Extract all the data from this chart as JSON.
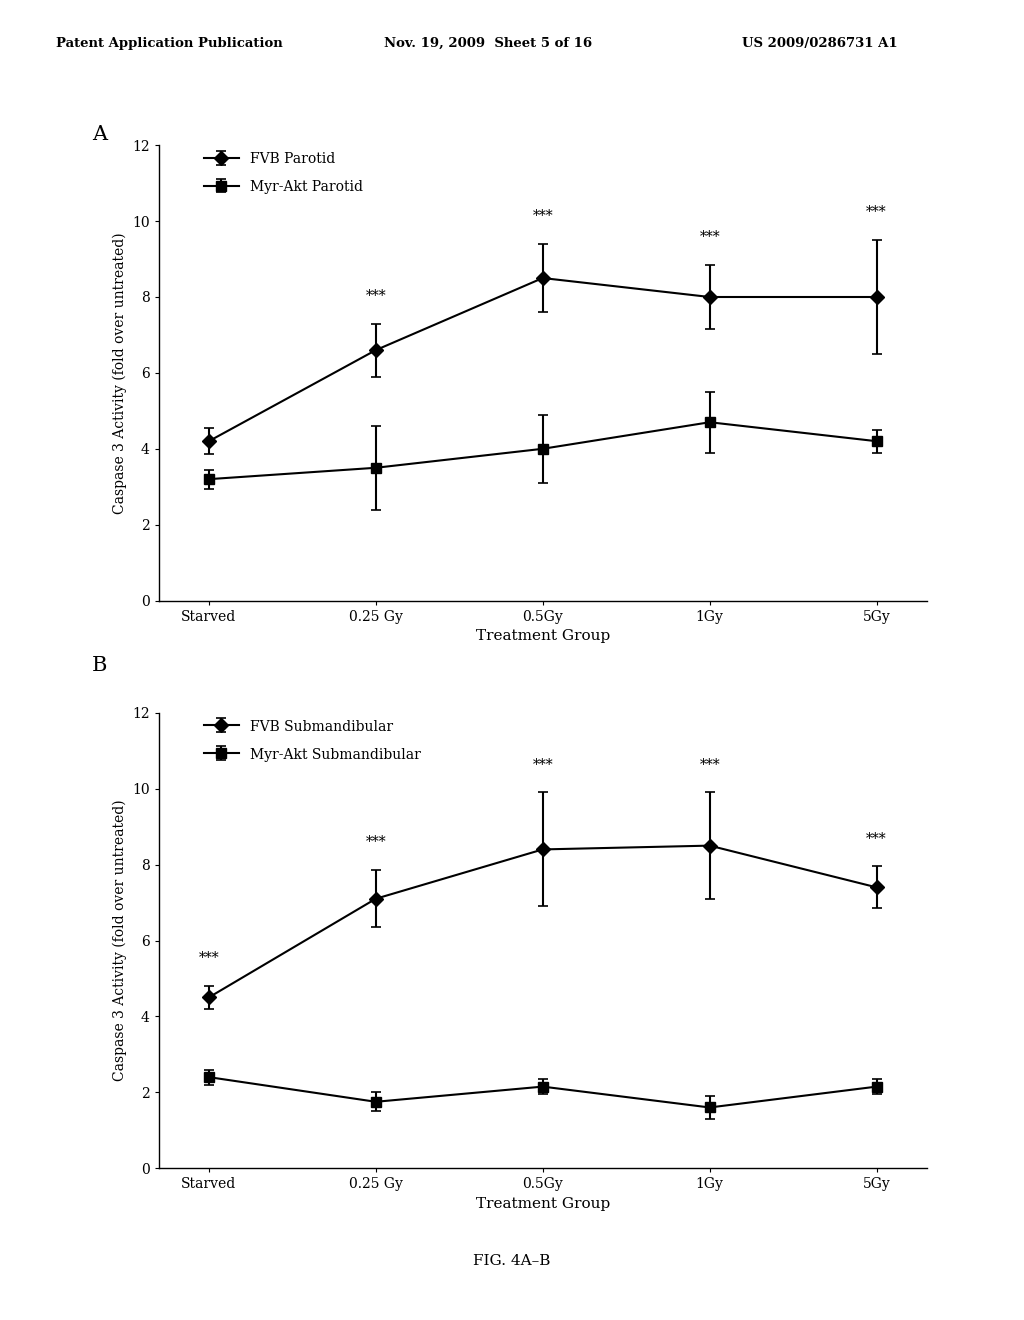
{
  "header_left": "Patent Application Publication",
  "header_mid": "Nov. 19, 2009  Sheet 5 of 16",
  "header_right": "US 2009/0286731 A1",
  "figure_label": "FIG. 4A–B",
  "panel_A": {
    "label": "A",
    "xlabel": "Treatment Group",
    "ylabel": "Caspase 3 Activity (fold over untreated)",
    "xlim": [
      -0.3,
      4.3
    ],
    "ylim": [
      0,
      12
    ],
    "yticks": [
      0,
      2,
      4,
      6,
      8,
      10,
      12
    ],
    "xtick_labels": [
      "Starved",
      "0.25 Gy",
      "0.5Gy",
      "1Gy",
      "5Gy"
    ],
    "series": [
      {
        "label": "FVB Parotid",
        "marker": "D",
        "x": [
          0,
          1,
          2,
          3,
          4
        ],
        "y": [
          4.2,
          6.6,
          8.5,
          8.0,
          8.0
        ],
        "yerr": [
          0.35,
          0.7,
          0.9,
          0.85,
          1.5
        ],
        "color": "#000000",
        "markersize": 7,
        "linewidth": 1.5,
        "significance": [
          null,
          "***",
          "***",
          "***",
          "***"
        ]
      },
      {
        "label": "Myr-Akt Parotid",
        "marker": "s",
        "x": [
          0,
          1,
          2,
          3,
          4
        ],
        "y": [
          3.2,
          3.5,
          4.0,
          4.7,
          4.2
        ],
        "yerr": [
          0.25,
          1.1,
          0.9,
          0.8,
          0.3
        ],
        "color": "#000000",
        "markersize": 7,
        "linewidth": 1.5,
        "significance": [
          null,
          null,
          null,
          null,
          null
        ]
      }
    ]
  },
  "panel_B": {
    "label": "B",
    "xlabel": "Treatment Group",
    "ylabel": "Caspase 3 Activity (fold over untreated)",
    "xlim": [
      -0.3,
      4.3
    ],
    "ylim": [
      0,
      12
    ],
    "yticks": [
      0,
      2,
      4,
      6,
      8,
      10,
      12
    ],
    "xtick_labels": [
      "Starved",
      "0.25 Gy",
      "0.5Gy",
      "1Gy",
      "5Gy"
    ],
    "series": [
      {
        "label": "FVB Submandibular",
        "marker": "D",
        "x": [
          0,
          1,
          2,
          3,
          4
        ],
        "y": [
          4.5,
          7.1,
          8.4,
          8.5,
          7.4
        ],
        "yerr": [
          0.3,
          0.75,
          1.5,
          1.4,
          0.55
        ],
        "color": "#000000",
        "markersize": 7,
        "linewidth": 1.5,
        "significance": [
          "***",
          "***",
          "***",
          "***",
          "***"
        ]
      },
      {
        "label": "Myr-Akt Submandibular",
        "marker": "s",
        "x": [
          0,
          1,
          2,
          3,
          4
        ],
        "y": [
          2.4,
          1.75,
          2.15,
          1.6,
          2.15
        ],
        "yerr": [
          0.2,
          0.25,
          0.2,
          0.3,
          0.2
        ],
        "color": "#000000",
        "markersize": 7,
        "linewidth": 1.5,
        "significance": [
          null,
          null,
          null,
          null,
          null
        ]
      }
    ]
  },
  "background_color": "#ffffff",
  "text_color": "#000000",
  "font_family": "DejaVu Serif"
}
